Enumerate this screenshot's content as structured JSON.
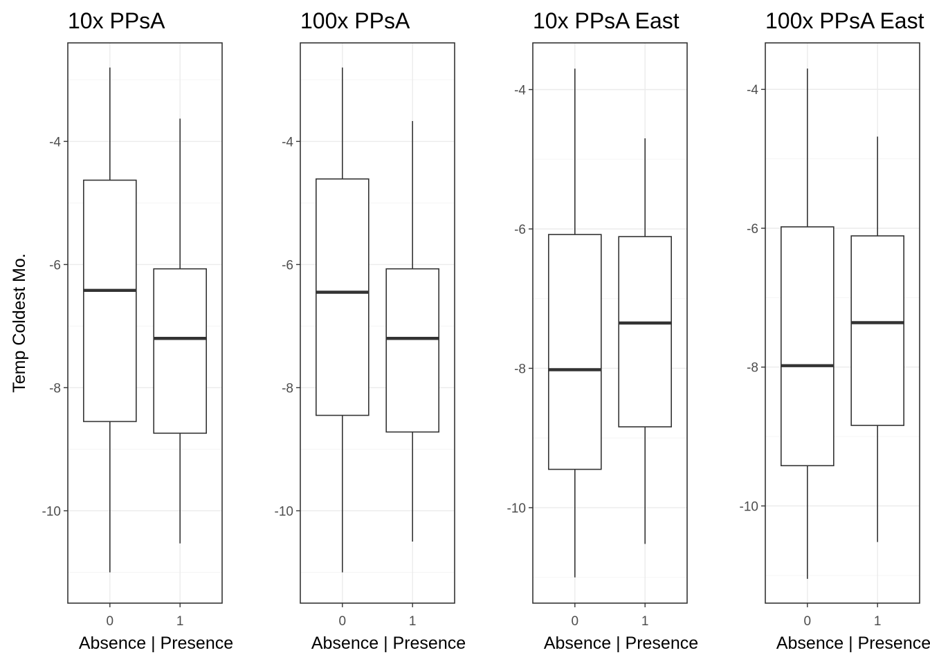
{
  "y_axis_title": "Temp Coldest Mo.",
  "colors": {
    "panel_border": "#333333",
    "grid_major": "#ebebeb",
    "grid_minor": "#f5f5f5",
    "box_line": "#333333",
    "text_title": "#000000",
    "text_tick": "#4d4d4d"
  },
  "chart_data": [
    {
      "type": "box",
      "title": "10x PPsA",
      "xlabel": "Absence | Presence",
      "ylabel": "Temp Coldest Mo.",
      "ylim": [
        -11.5,
        -2.4
      ],
      "yticks": [
        -10,
        -8,
        -6,
        -4
      ],
      "ytick_labels": [
        "-10",
        "-8",
        "-6",
        "-4"
      ],
      "categories": [
        "0",
        "1"
      ],
      "boxes": [
        {
          "category": "0",
          "min": -11.0,
          "q1": -8.55,
          "median": -6.42,
          "q3": -4.63,
          "max": -2.8
        },
        {
          "category": "1",
          "min": -10.53,
          "q1": -8.74,
          "median": -7.2,
          "q3": -6.07,
          "max": -3.63
        }
      ],
      "grid": true
    },
    {
      "type": "box",
      "title": "100x PPsA",
      "xlabel": "Absence | Presence",
      "ylabel": "",
      "ylim": [
        -11.5,
        -2.4
      ],
      "yticks": [
        -10,
        -8,
        -6,
        -4
      ],
      "ytick_labels": [
        "-10",
        "-8",
        "-6",
        "-4"
      ],
      "categories": [
        "0",
        "1"
      ],
      "boxes": [
        {
          "category": "0",
          "min": -11.0,
          "q1": -8.45,
          "median": -6.45,
          "q3": -4.61,
          "max": -2.8
        },
        {
          "category": "1",
          "min": -10.5,
          "q1": -8.72,
          "median": -7.2,
          "q3": -6.07,
          "max": -3.67
        }
      ],
      "grid": true
    },
    {
      "type": "box",
      "title": "10x PPsA East",
      "xlabel": "Absence | Presence",
      "ylabel": "",
      "ylim": [
        -11.37,
        -3.33
      ],
      "yticks": [
        -10,
        -8,
        -6,
        -4
      ],
      "ytick_labels": [
        "-10",
        "-8",
        "-6",
        "-4"
      ],
      "categories": [
        "0",
        "1"
      ],
      "boxes": [
        {
          "category": "0",
          "min": -11.0,
          "q1": -9.45,
          "median": -8.02,
          "q3": -6.08,
          "max": -3.7
        },
        {
          "category": "1",
          "min": -10.52,
          "q1": -8.84,
          "median": -7.35,
          "q3": -6.11,
          "max": -4.7
        }
      ],
      "grid": true
    },
    {
      "type": "box",
      "title": "100x PPsA East",
      "xlabel": "Absence | Presence",
      "ylabel": "",
      "ylim": [
        -11.4,
        -3.33
      ],
      "yticks": [
        -10,
        -8,
        -6,
        -4
      ],
      "ytick_labels": [
        "-10",
        "-8",
        "-6",
        "-4"
      ],
      "categories": [
        "0",
        "1"
      ],
      "boxes": [
        {
          "category": "0",
          "min": -11.05,
          "q1": -9.42,
          "median": -7.98,
          "q3": -5.98,
          "max": -3.7
        },
        {
          "category": "1",
          "min": -10.52,
          "q1": -8.84,
          "median": -7.36,
          "q3": -6.11,
          "max": -4.68
        }
      ],
      "grid": true
    }
  ]
}
